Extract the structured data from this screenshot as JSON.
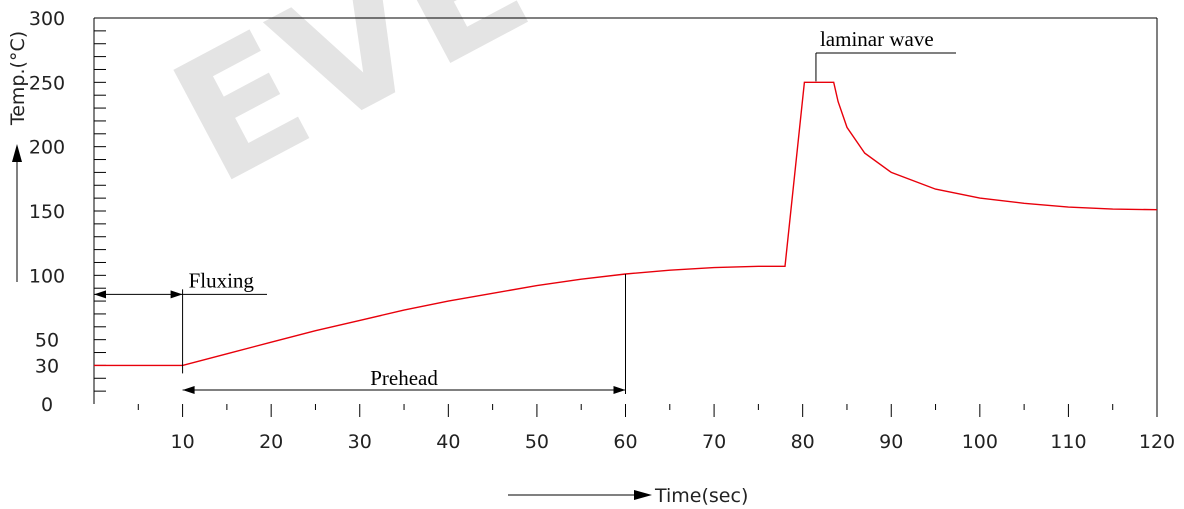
{
  "chart_data": {
    "type": "line",
    "title": "",
    "xlabel": "Time(sec)",
    "ylabel": "Temp.(°C)",
    "xlim": [
      0,
      120
    ],
    "ylim": [
      0,
      300
    ],
    "x_ticks": [
      10,
      20,
      30,
      40,
      50,
      60,
      70,
      80,
      90,
      100,
      110,
      120
    ],
    "y_ticks": [
      0,
      30,
      50,
      100,
      150,
      200,
      250,
      300
    ],
    "grid": false,
    "series": [
      {
        "color": "#e8000b",
        "points": [
          [
            0,
            30
          ],
          [
            10,
            30
          ],
          [
            15,
            39
          ],
          [
            20,
            48
          ],
          [
            25,
            57
          ],
          [
            30,
            65
          ],
          [
            35,
            73
          ],
          [
            40,
            80
          ],
          [
            45,
            86
          ],
          [
            50,
            92
          ],
          [
            55,
            97
          ],
          [
            60,
            101
          ],
          [
            65,
            104
          ],
          [
            70,
            106
          ],
          [
            75,
            107
          ],
          [
            78,
            107
          ],
          [
            80.2,
            250
          ],
          [
            83.5,
            250
          ],
          [
            84,
            235
          ],
          [
            85,
            215
          ],
          [
            87,
            195
          ],
          [
            90,
            180
          ],
          [
            95,
            167
          ],
          [
            100,
            160
          ],
          [
            105,
            156
          ],
          [
            110,
            153
          ],
          [
            115,
            151.5
          ],
          [
            120,
            151
          ]
        ]
      }
    ],
    "annotations": {
      "fluxing": {
        "label": "Fluxing",
        "x_start": 0,
        "x_end": 10,
        "y": 100
      },
      "prehead": {
        "label": "Prehead",
        "x_start": 10,
        "x_end": 60,
        "y": 0
      },
      "laminar_wave": {
        "label": "laminar wave",
        "x": 81.5,
        "y": 300
      }
    },
    "watermark": "EVE"
  }
}
